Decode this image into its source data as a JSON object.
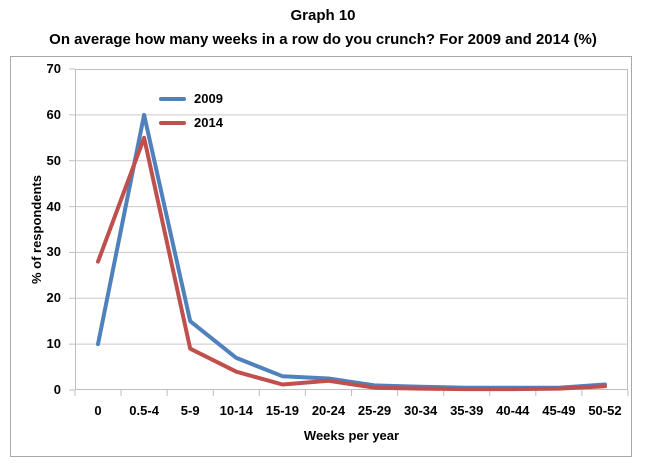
{
  "chart_data": {
    "type": "line",
    "title": "Graph 10",
    "subtitle": "On average how many weeks in a row do you crunch? For 2009 and 2014 (%)",
    "xlabel": "Weeks per year",
    "ylabel": "% of respondents",
    "ylim": [
      0,
      70
    ],
    "yticks": [
      0,
      10,
      20,
      30,
      40,
      50,
      60,
      70
    ],
    "grid": true,
    "legend_position": "inside-top-left",
    "categories": [
      "0",
      "0.5-4",
      "5-9",
      "10-14",
      "15-19",
      "20-24",
      "25-29",
      "30-34",
      "35-39",
      "40-44",
      "45-49",
      "50-52"
    ],
    "series": [
      {
        "name": "2009",
        "color": "#4F81BD",
        "values": [
          10,
          60,
          15,
          7,
          3,
          2.5,
          1,
          0.7,
          0.5,
          0.5,
          0.5,
          1.2
        ]
      },
      {
        "name": "2014",
        "color": "#C0504D",
        "values": [
          28,
          55,
          9,
          4,
          1.2,
          2,
          0.5,
          0.3,
          0.2,
          0.2,
          0.3,
          0.8
        ]
      }
    ],
    "colors": {
      "gridline": "#C9C9C9",
      "plot_border": "#BFBFBF",
      "frame_border": "#A8A8A8",
      "text": "#000000"
    }
  }
}
